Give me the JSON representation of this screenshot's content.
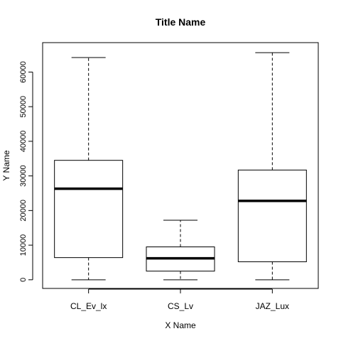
{
  "chart_data": {
    "type": "box",
    "title": "Title Name",
    "xlabel": "X Name",
    "ylabel": "Y Name",
    "ylim": [
      -2500,
      68500
    ],
    "yticks": [
      0,
      10000,
      20000,
      30000,
      40000,
      50000,
      60000
    ],
    "grid": false,
    "legend": "none",
    "categories": [
      "CL_Ev_lx",
      "CS_Lv",
      "JAZ_Lux"
    ],
    "boxes": [
      {
        "min": 0,
        "q1": 6400,
        "median": 26300,
        "q3": 34500,
        "max": 64200
      },
      {
        "min": 0,
        "q1": 2500,
        "median": 6200,
        "q3": 9500,
        "max": 17200
      },
      {
        "min": 0,
        "q1": 5200,
        "median": 22800,
        "q3": 31700,
        "max": 65600
      }
    ]
  }
}
